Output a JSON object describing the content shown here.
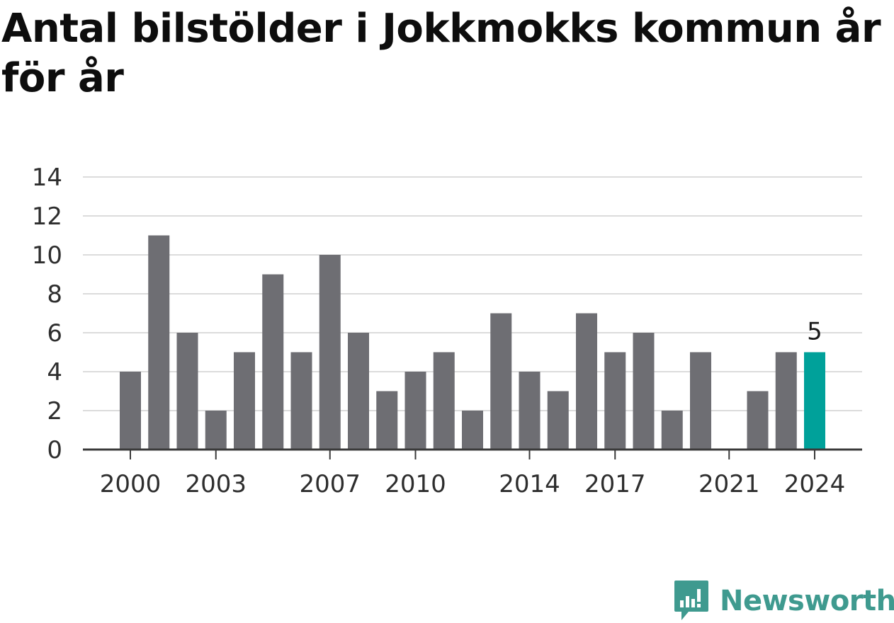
{
  "chart_data": {
    "type": "bar",
    "title": "Antal bilstölder i Jokkmokks kommun år för år",
    "xlabel": "",
    "ylabel": "",
    "categories": [
      2000,
      2001,
      2002,
      2003,
      2004,
      2005,
      2006,
      2007,
      2008,
      2009,
      2010,
      2011,
      2012,
      2013,
      2014,
      2015,
      2016,
      2017,
      2018,
      2019,
      2020,
      2021,
      2022,
      2023,
      2024
    ],
    "values": [
      4,
      11,
      6,
      2,
      5,
      9,
      5,
      10,
      6,
      3,
      4,
      5,
      2,
      7,
      4,
      3,
      7,
      5,
      6,
      2,
      5,
      0,
      3,
      5,
      5
    ],
    "ylim": [
      0,
      14
    ],
    "y_ticks": [
      0,
      2,
      4,
      6,
      8,
      10,
      12,
      14
    ],
    "x_tick_labels": [
      2000,
      2003,
      2007,
      2010,
      2014,
      2017,
      2021,
      2024
    ],
    "grid": true,
    "bar_color": "#6e6e73",
    "highlight_color": "#00a19a",
    "highlight_category": 2024,
    "highlight_label": "5"
  },
  "brand": {
    "name": "Newsworthy",
    "color": "#3f9a8f",
    "icon": "newsworthy-logo-icon"
  }
}
